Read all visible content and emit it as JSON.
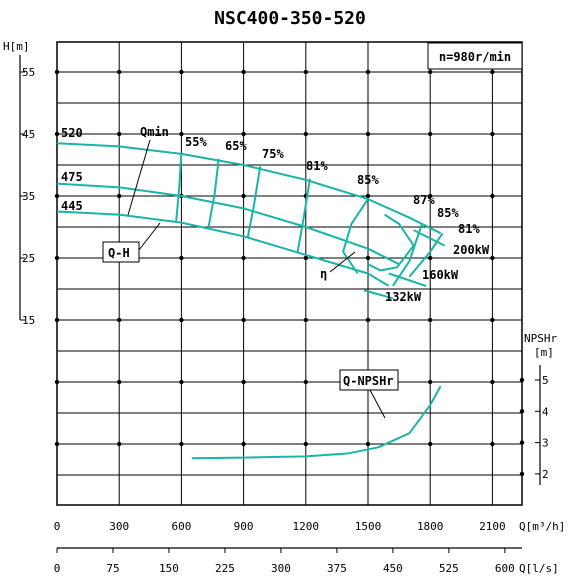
{
  "chart_data": {
    "type": "line",
    "title": "NSC400-350-520",
    "speed": "n=980r/min",
    "axes": {
      "x_top": {
        "unit": "Q[m³/h]",
        "range": [
          0,
          2200
        ],
        "ticks": [
          "0",
          "300",
          "600",
          "900",
          "1200",
          "1500",
          "1800",
          "2100"
        ]
      },
      "x_bottom": {
        "unit": "Q[l/s]",
        "range": [
          0,
          625
        ],
        "ticks": [
          "0",
          "75",
          "150",
          "225",
          "300",
          "375",
          "450",
          "525",
          "600"
        ]
      },
      "y_head": {
        "unit": "H[m]",
        "range": [
          15,
          55
        ],
        "ticks": [
          "15",
          "25",
          "35",
          "45",
          "55"
        ]
      },
      "y_npsh": {
        "unit_line1": "NPSHr",
        "unit_line2": "[m]",
        "range": [
          2,
          5
        ],
        "ticks": [
          "2",
          "3",
          "4",
          "5"
        ]
      }
    },
    "grid": true,
    "series": [
      {
        "name": "520",
        "x": [
          0,
          300,
          600,
          900,
          1200,
          1500,
          1700,
          1850
        ],
        "y": [
          43.5,
          43.0,
          41.8,
          40.0,
          37.6,
          34.5,
          31.5,
          29.0
        ]
      },
      {
        "name": "475",
        "x": [
          0,
          300,
          600,
          900,
          1200,
          1500,
          1650
        ],
        "y": [
          37.0,
          36.4,
          35.0,
          33.0,
          30.0,
          26.5,
          24.0
        ]
      },
      {
        "name": "445",
        "x": [
          0,
          300,
          600,
          900,
          1200,
          1500,
          1600
        ],
        "y": [
          32.5,
          32.0,
          30.7,
          28.5,
          25.5,
          22.5,
          20.5
        ]
      },
      {
        "name": "Q-NPSHr",
        "x": [
          650,
          900,
          1200,
          1400,
          1550,
          1700,
          1800,
          1850
        ],
        "y": [
          2.5,
          2.52,
          2.56,
          2.65,
          2.85,
          3.3,
          4.2,
          4.8
        ]
      }
    ],
    "efficiency_curves": [
      {
        "label": "55%",
        "x": [
          575,
          590,
          600
        ],
        "y": [
          31.0,
          36.5,
          42.0
        ]
      },
      {
        "label": "65%",
        "x": [
          730,
          760,
          780
        ],
        "y": [
          29.8,
          35.3,
          41.0
        ]
      },
      {
        "label": "75%",
        "x": [
          920,
          950,
          980
        ],
        "y": [
          28.3,
          33.5,
          39.8
        ]
      },
      {
        "label": "81%",
        "x": [
          1160,
          1190,
          1220
        ],
        "y": [
          25.9,
          31.5,
          37.8
        ]
      },
      {
        "label": "85%",
        "x": [
          1450,
          1380,
          1420,
          1500
        ],
        "y": [
          22.5,
          26.0,
          30.5,
          34.5
        ]
      },
      {
        "label": "87%",
        "x": [
          1500,
          1560,
          1640,
          1720,
          1650,
          1580
        ],
        "y": [
          24.0,
          23.0,
          23.5,
          27.0,
          30.5,
          32.0
        ]
      },
      {
        "label": "85%",
        "x": [
          1620,
          1700,
          1760
        ],
        "y": [
          20.5,
          24.5,
          30.5
        ]
      },
      {
        "label": "81%",
        "x": [
          1700,
          1800,
          1860
        ],
        "y": [
          22.0,
          26.0,
          29.0
        ]
      }
    ],
    "power_lines": [
      {
        "label": "200kW",
        "x": [
          1720,
          1870
        ],
        "y": [
          29.5,
          27.0
        ]
      },
      {
        "label": "160kW",
        "x": [
          1600,
          1780
        ],
        "y": [
          22.5,
          20.5
        ]
      },
      {
        "label": "132kW",
        "x": [
          1480,
          1620
        ],
        "y": [
          19.8,
          18.5
        ]
      }
    ],
    "annotations": [
      "Qmin",
      "Q-H",
      "η",
      "Q-NPSHr"
    ]
  }
}
